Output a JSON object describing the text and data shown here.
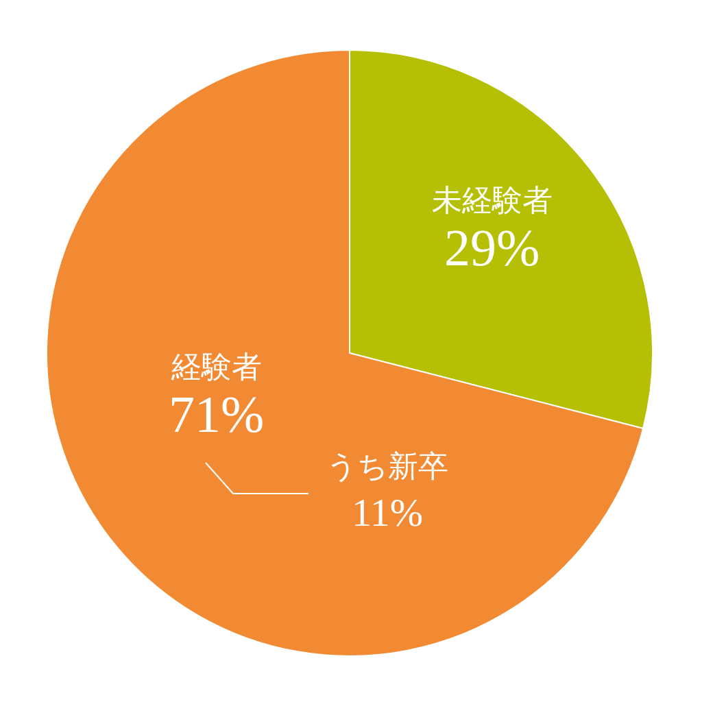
{
  "chart_data": {
    "type": "pie",
    "categories": [
      "未経験者",
      "経験者"
    ],
    "values": [
      29,
      71
    ],
    "colors": [
      "#b5c004",
      "#f28a33"
    ],
    "value_labels": [
      "29%",
      "71%"
    ],
    "annotations": [
      "うち新卒",
      "11%"
    ]
  }
}
